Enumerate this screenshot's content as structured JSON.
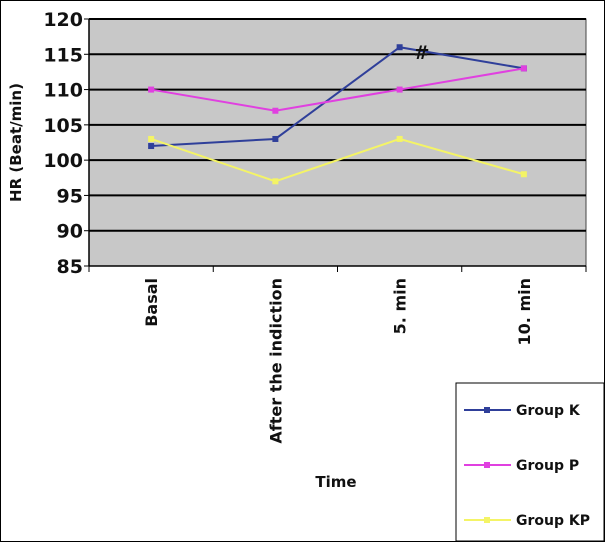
{
  "chart_data": {
    "type": "line",
    "ylabel": "HR (Beat/min)",
    "xlabel": "Time",
    "ylim": [
      85,
      120
    ],
    "yticks": [
      85,
      90,
      95,
      100,
      105,
      110,
      115,
      120
    ],
    "ytick_labels": [
      "85",
      "90",
      "95",
      "100",
      "105",
      "110",
      "115",
      "120"
    ],
    "categories": [
      "Basal",
      "After the indiction",
      "5. min",
      "10. min"
    ],
    "grid": "horizontal",
    "legend_position": "bottom-right",
    "series": [
      {
        "name": "Group K",
        "values": [
          102,
          103,
          116,
          113
        ],
        "color": "#2f3f9a"
      },
      {
        "name": "Group P",
        "values": [
          110,
          107,
          110,
          113
        ],
        "color": "#e040e0"
      },
      {
        "name": "Group KP",
        "values": [
          103,
          97,
          103,
          98
        ],
        "color": "#f4f466"
      }
    ],
    "annotations": [
      {
        "text": "#",
        "category": "5. min"
      }
    ],
    "plot_background": "#c8c8c8"
  }
}
